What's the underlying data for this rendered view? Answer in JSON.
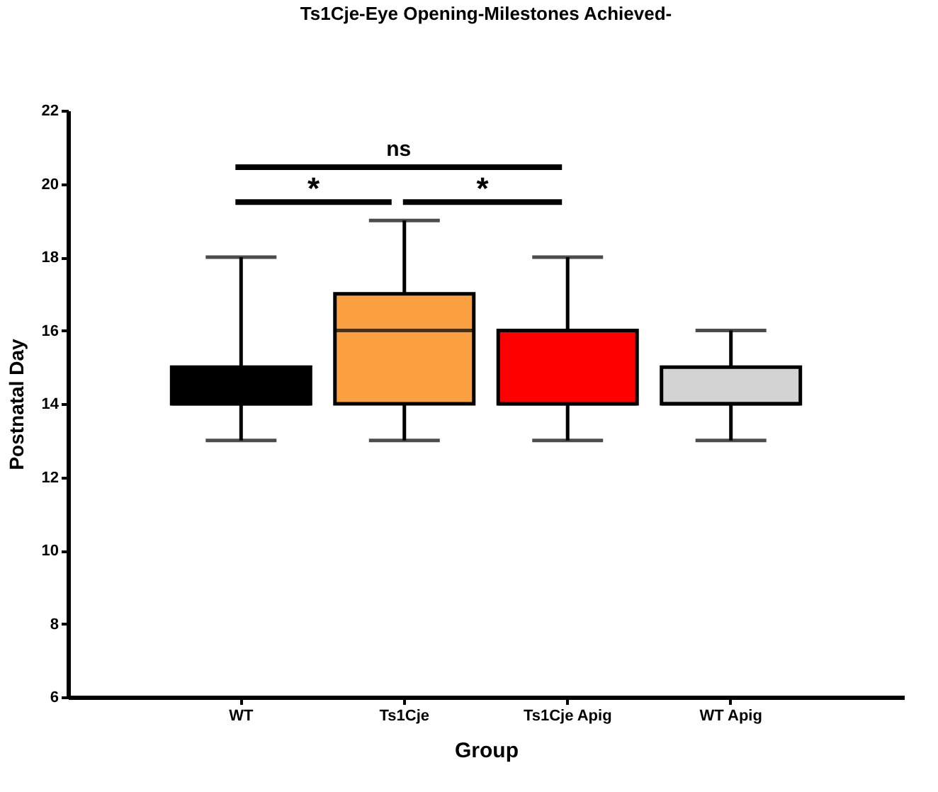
{
  "chart_data": {
    "type": "box",
    "title": "Ts1Cje-Eye Opening-Milestones Achieved-",
    "xlabel": "Group",
    "ylabel": "Postnatal Day",
    "categories": [
      "WT",
      "Ts1Cje",
      "Ts1Cje Apig",
      "WT Apig"
    ],
    "boxes": [
      {
        "low": 13,
        "q1": 14,
        "median": 14,
        "q3": 15,
        "high": 18
      },
      {
        "low": 13,
        "q1": 14,
        "median": 16,
        "q3": 17,
        "high": 19
      },
      {
        "low": 13,
        "q1": 14,
        "median": 14,
        "q3": 16,
        "high": 18
      },
      {
        "low": 13,
        "q1": 14,
        "median": 14,
        "q3": 15,
        "high": 16
      }
    ],
    "colors": [
      "#000000",
      "#fba040",
      "#ff0000",
      "#d3d3d3"
    ],
    "ylim": [
      6,
      22
    ],
    "yticks": [
      6,
      8,
      10,
      12,
      14,
      16,
      18,
      20,
      22
    ],
    "grid": false,
    "annotations": [
      "ns",
      "*",
      "*"
    ]
  }
}
